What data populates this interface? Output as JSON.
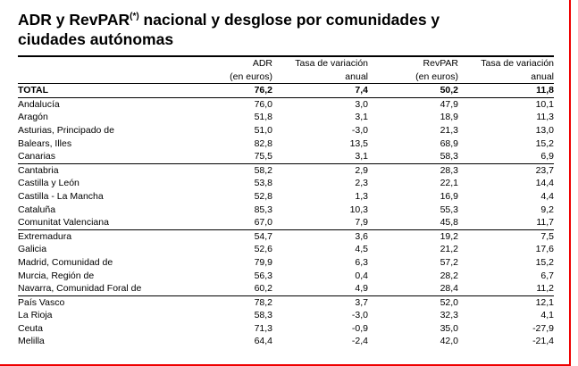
{
  "title": {
    "pre": "ADR y RevPAR",
    "sup": "(*)",
    "post": " nacional y desglose por comunidades y ciudades autónomas"
  },
  "table": {
    "header": [
      [
        "",
        ""
      ],
      [
        "ADR",
        "(en euros)"
      ],
      [
        "Tasa de variación",
        "anual"
      ],
      [
        "RevPAR",
        "(en euros)"
      ],
      [
        "Tasa de variación",
        "anual"
      ]
    ],
    "rows": [
      [
        "TOTAL",
        "76,2",
        "7,4",
        "50,2",
        "11,8"
      ],
      [
        "Andalucía",
        "76,0",
        "3,0",
        "47,9",
        "10,1"
      ],
      [
        "Aragón",
        "51,8",
        "3,1",
        "18,9",
        "11,3"
      ],
      [
        "Asturias, Principado de",
        "51,0",
        "-3,0",
        "21,3",
        "13,0"
      ],
      [
        "Balears, Illes",
        "82,8",
        "13,5",
        "68,9",
        "15,2"
      ],
      [
        "Canarias",
        "75,5",
        "3,1",
        "58,3",
        "6,9"
      ],
      [
        "Cantabria",
        "58,2",
        "2,9",
        "28,3",
        "23,7"
      ],
      [
        "Castilla y León",
        "53,8",
        "2,3",
        "22,1",
        "14,4"
      ],
      [
        "Castilla - La Mancha",
        "52,8",
        "1,3",
        "16,9",
        "4,4"
      ],
      [
        "Cataluña",
        "85,3",
        "10,3",
        "55,3",
        "9,2"
      ],
      [
        "Comunitat Valenciana",
        "67,0",
        "7,9",
        "45,8",
        "11,7"
      ],
      [
        "Extremadura",
        "54,7",
        "3,6",
        "19,2",
        "7,5"
      ],
      [
        "Galicia",
        "52,6",
        "4,5",
        "21,2",
        "17,6"
      ],
      [
        "Madrid, Comunidad de",
        "79,9",
        "6,3",
        "57,2",
        "15,2"
      ],
      [
        "Murcia, Región de",
        "56,3",
        "0,4",
        "28,2",
        "6,7"
      ],
      [
        "Navarra, Comunidad Foral de",
        "60,2",
        "4,9",
        "28,4",
        "11,2"
      ],
      [
        "País Vasco",
        "78,2",
        "3,7",
        "52,0",
        "12,1"
      ],
      [
        "La Rioja",
        "58,3",
        "-3,0",
        "32,3",
        "4,1"
      ],
      [
        "Ceuta",
        "71,3",
        "-0,9",
        "35,0",
        "-27,9"
      ],
      [
        "Melilla",
        "64,4",
        "-2,4",
        "42,0",
        "-21,4"
      ]
    ]
  }
}
